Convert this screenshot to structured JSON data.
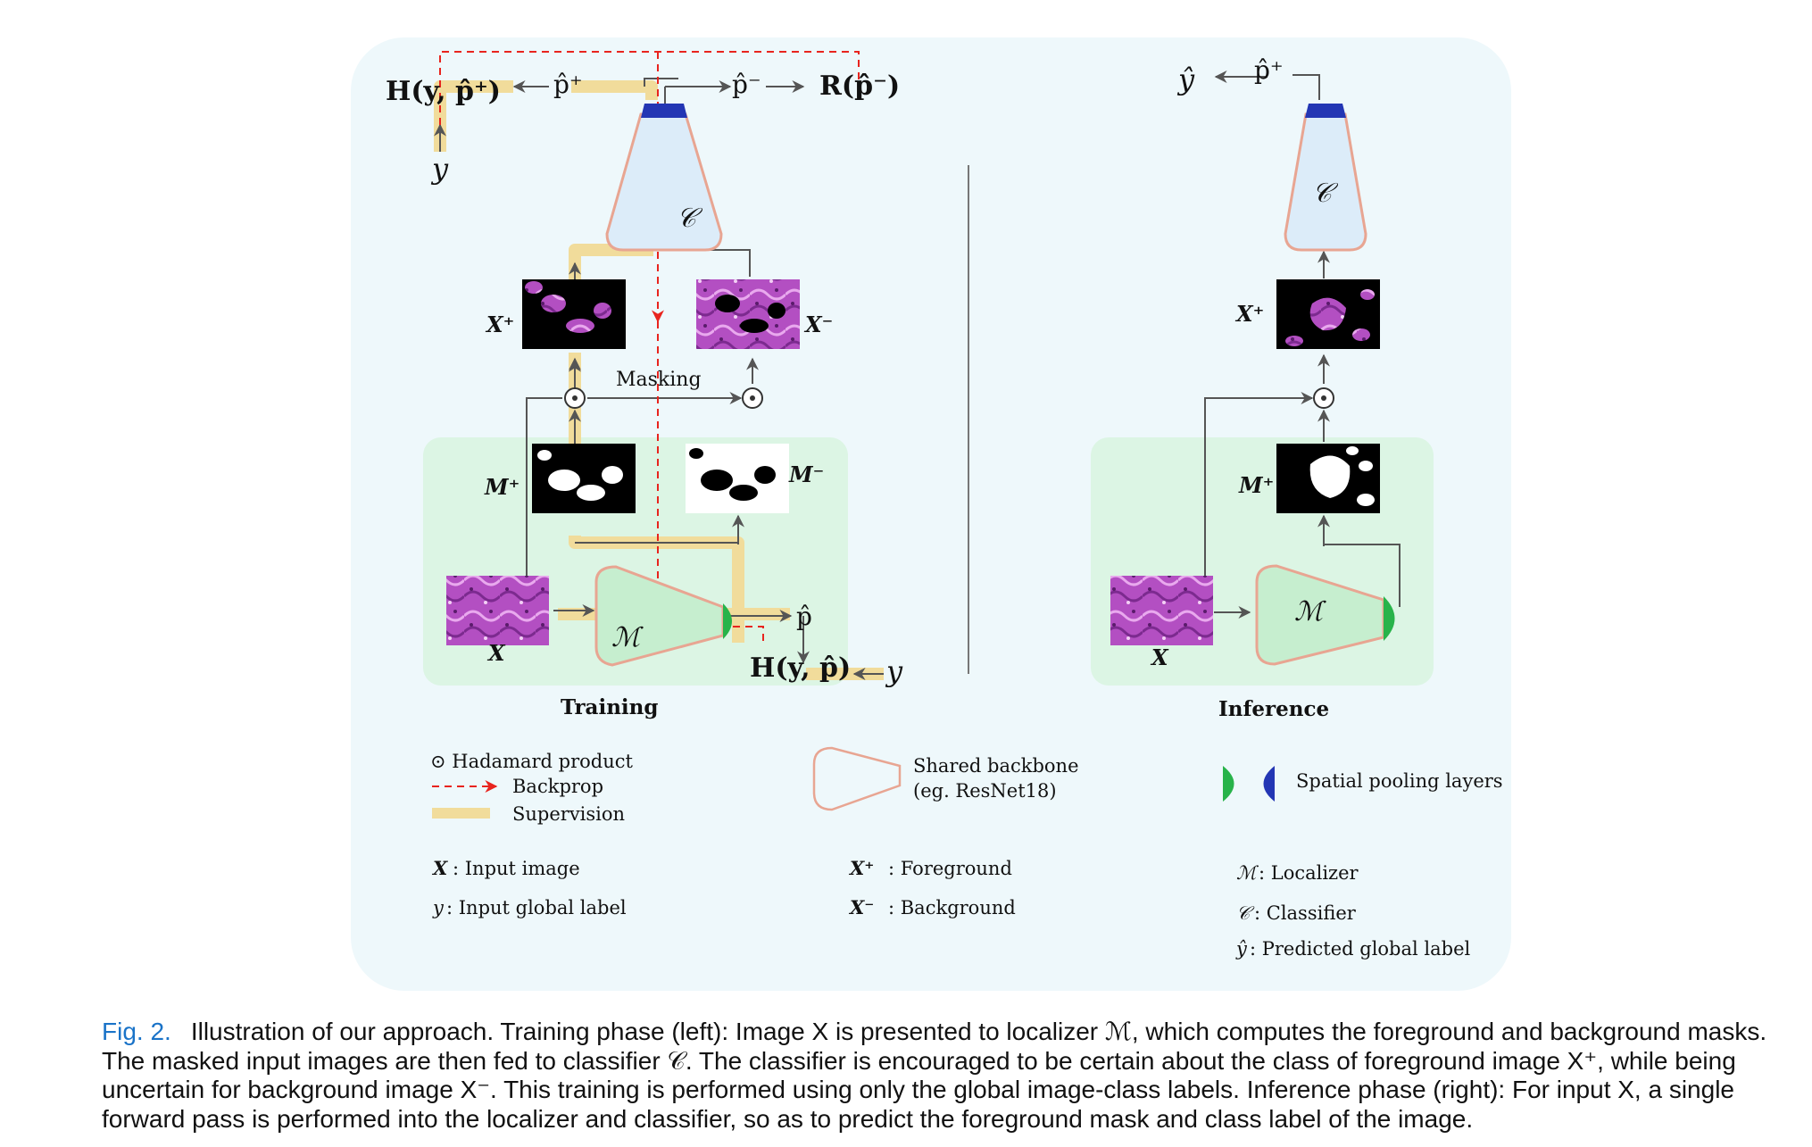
{
  "panels": {
    "training": "Training",
    "inference": "Inference"
  },
  "labels": {
    "h_pos": "H(y, p̂⁺)",
    "p_pos": "p̂⁺",
    "p_neg": "p̂⁻",
    "r_neg": "R(p̂⁻)",
    "y": "y",
    "c": "𝒞",
    "m": "ℳ",
    "x_pos": "X⁺",
    "x_neg": "X⁻",
    "m_pos": "M⁺",
    "m_neg": "M⁻",
    "x": "X",
    "p_hat": "p̂",
    "h_p": "H(y, p̂)",
    "masking": "Masking",
    "y_hat": "ŷ",
    "odot": "⊙"
  },
  "legend": {
    "hadamard": "⊙ Hadamard product",
    "backprop": "Backprop",
    "supervision": "Supervision",
    "shared_backbone_1": "Shared backbone",
    "shared_backbone_2": "(eg. ResNet18)",
    "spatial_pooling": "Spatial pooling layers",
    "x_input": ": Input image",
    "y_input": ": Input global label",
    "x_fg": ": Foreground",
    "x_bg": ": Background",
    "m_loc": ": Localizer",
    "c_cls": ": Classifier",
    "yhat_pred": ": Predicted global label"
  },
  "caption": {
    "label": "Fig. 2.",
    "text": "Illustration of our approach. Training phase (left): Image X is presented to localizer ℳ, which computes the foreground and background masks. The masked input images are then fed to classifier 𝒞. The classifier is encouraged to be certain about the class of foreground image X⁺, while being uncertain for background image X⁻. This training is performed using only the global image-class labels. Inference phase (right): For input X, a single forward pass is performed into the localizer and classifier, so as to predict the foreground mask and class label of the image."
  },
  "colors": {
    "panel_bg": "#eef8fb",
    "green_bg": "#dcf5e4",
    "supervision": "#f1dc9b",
    "backprop": "#e8241e",
    "pool_green": "#28b34a",
    "pool_blue": "#2336b4",
    "backbone_stroke": "#e8a592",
    "arrow": "#555555",
    "tissue": "#b34fc2"
  }
}
